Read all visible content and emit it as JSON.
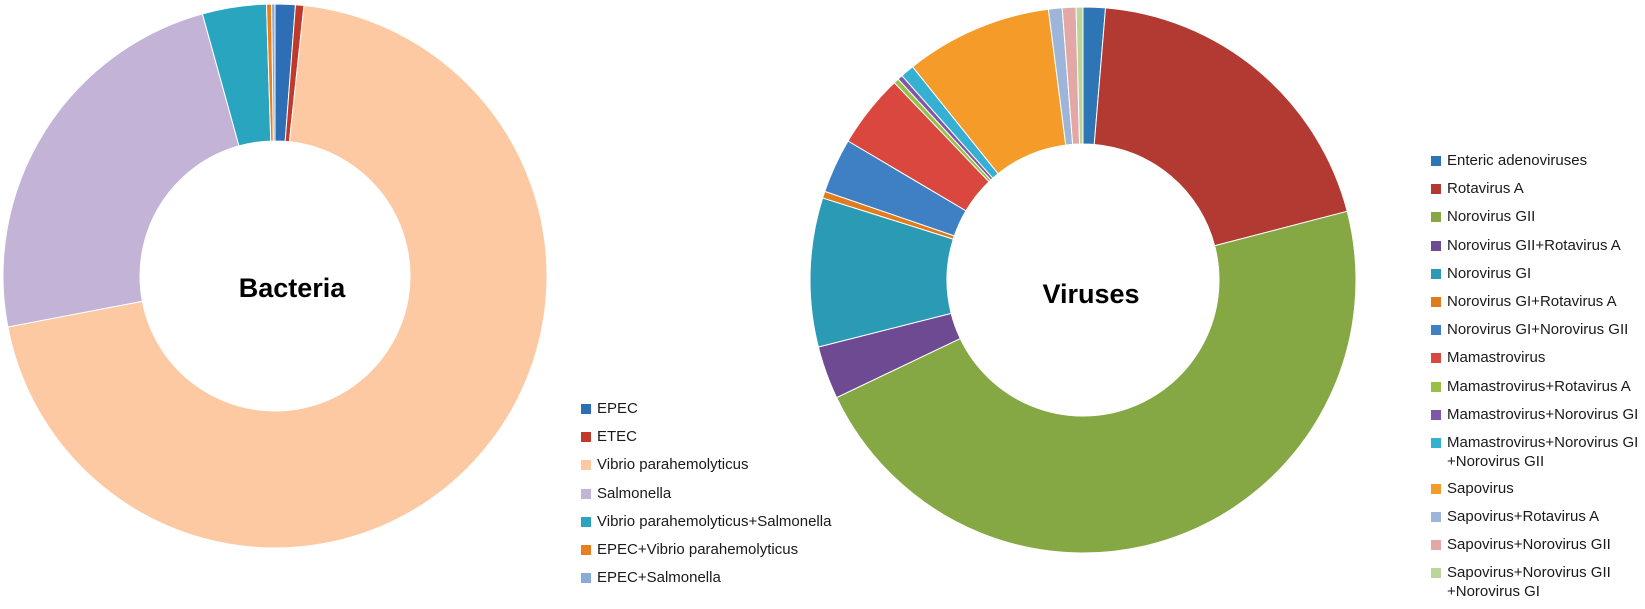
{
  "chart_data": [
    {
      "type": "pie",
      "donut": true,
      "title": "Bacteria",
      "legend_position": "bottom-right",
      "categories": [
        "EPEC",
        "ETEC",
        "Vibrio parahemolyticus",
        "Salmonella",
        "Vibrio parahemolyticus+Salmonella",
        "EPEC+Vibrio parahemolyticus",
        "EPEC+Salmonella"
      ],
      "values": [
        1.2,
        0.5,
        70.3,
        23.7,
        3.8,
        0.3,
        0.2
      ],
      "colors": [
        "#2e6eb5",
        "#c0392b",
        "#fcc9a2",
        "#c3b3d6",
        "#2aa5c0",
        "#e8801f",
        "#8aabd6"
      ]
    },
    {
      "type": "pie",
      "donut": true,
      "title": "Viruses",
      "legend_position": "right",
      "categories": [
        "Enteric adenoviruses",
        "Rotavirus A",
        "Norovirus GII",
        "Norovirus GII+Rotavirus A",
        "Norovirus GI",
        "Norovirus GI+Rotavirus A",
        "Norovirus GI+Norovirus GII",
        "Mamastrovirus",
        "Mamastrovirus+Rotavirus A",
        "Mamastrovirus+Norovirus GI",
        "Mamastrovirus+Norovirus GI\n+Norovirus GII",
        "Sapovirus",
        "Sapovirus+Rotavirus A",
        "Sapovirus+Norovirus GII",
        "Sapovirus+Norovirus GII\n+Norovirus GI"
      ],
      "values": [
        1.3,
        19.4,
        46.4,
        3.1,
        8.7,
        0.4,
        3.2,
        4.3,
        0.3,
        0.3,
        0.8,
        8.6,
        0.8,
        0.8,
        0.4
      ],
      "colors": [
        "#2e75b6",
        "#b23a32",
        "#86a844",
        "#6e4a93",
        "#2b9ab4",
        "#e07c1e",
        "#3f7fc4",
        "#d9473e",
        "#98bf46",
        "#7e57a8",
        "#35b0d3",
        "#f59b2a",
        "#9eb5da",
        "#e3a7a6",
        "#bcd59a"
      ]
    }
  ]
}
